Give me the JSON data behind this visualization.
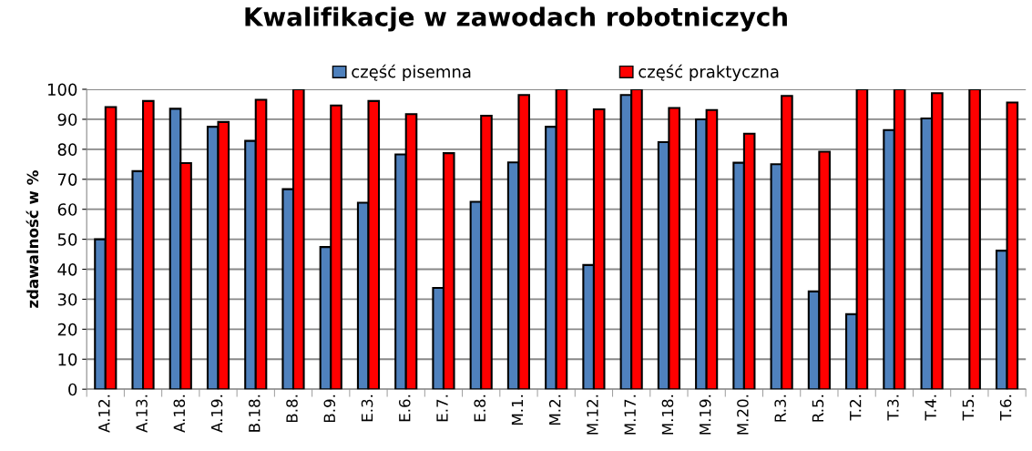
{
  "chart_data": {
    "type": "bar",
    "title": "Kwalifikacje w zawodach robotniczych",
    "ylabel": "zdawalność w %",
    "categories": [
      "A.12.",
      "A.13.",
      "A.18.",
      "A.19.",
      "B.18.",
      "B.8.",
      "B.9.",
      "E.3.",
      "E.6.",
      "E.7.",
      "E.8.",
      "M.1.",
      "M.2.",
      "M.12.",
      "M.17.",
      "M.18.",
      "M.19.",
      "M.20.",
      "R.3.",
      "R.5.",
      "T.2.",
      "T.3.",
      "T.4.",
      "T.5.",
      "T.6."
    ],
    "series": [
      {
        "name": "część pisemna",
        "color": "#4f81bd",
        "values": [
          50,
          72.7,
          93.5,
          87.5,
          82.8,
          66.7,
          47.4,
          62.2,
          78.3,
          33.8,
          62.5,
          75.6,
          87.5,
          41.4,
          98.1,
          82.4,
          90,
          75.5,
          75,
          32.6,
          25,
          86.4,
          90.3,
          null,
          46.2
        ]
      },
      {
        "name": "część praktyczna",
        "color": "#ff0000",
        "values": [
          94.1,
          96.1,
          75.4,
          89.1,
          96.5,
          100,
          94.6,
          96.1,
          91.7,
          78.7,
          91.2,
          98.1,
          100,
          93.3,
          100,
          93.8,
          93.1,
          85.2,
          97.8,
          79.2,
          100,
          100,
          98.7,
          100,
          95.6
        ]
      }
    ],
    "ylim": [
      0,
      100
    ],
    "yticks": [
      0,
      10,
      20,
      30,
      40,
      50,
      60,
      70,
      80,
      90,
      100
    ],
    "grid": "y",
    "legend": "top"
  }
}
